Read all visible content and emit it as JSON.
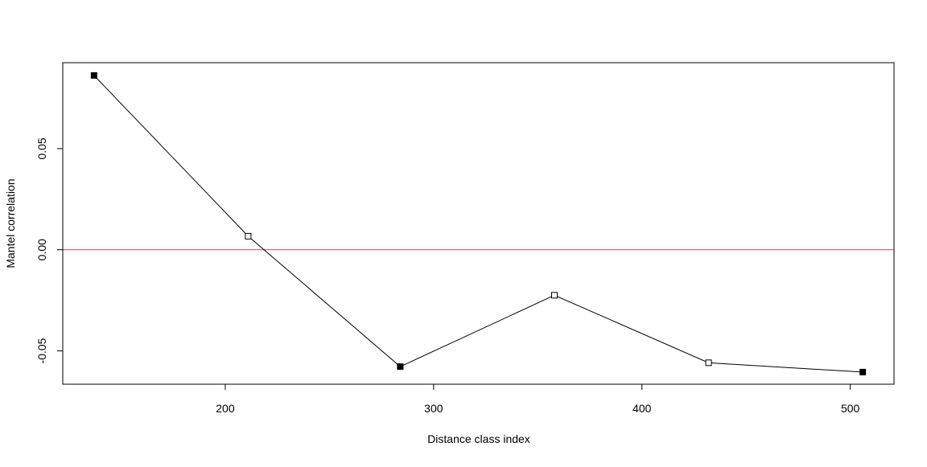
{
  "chart_data": {
    "type": "line",
    "title": "",
    "xlabel": "Distance class index",
    "ylabel": "Mantel correlation",
    "xlim": [
      122,
      521
    ],
    "ylim": [
      -0.0665,
      0.0925
    ],
    "xticks": [
      200,
      300,
      400,
      500
    ],
    "xtick_labels": [
      "200",
      "300",
      "400",
      "500"
    ],
    "yticks": [
      -0.05,
      0,
      0.05
    ],
    "ytick_labels": [
      "-0.05",
      "0.00",
      "0.05"
    ],
    "grid": false,
    "series": [
      {
        "x": [
          137,
          211,
          284,
          358,
          432,
          506
        ],
        "y": [
          0.0862,
          0.0067,
          -0.0578,
          -0.0225,
          -0.0559,
          -0.0605
        ],
        "significant": [
          true,
          false,
          true,
          false,
          false,
          true
        ],
        "color": "#000000"
      }
    ],
    "reference_line": {
      "y": 0,
      "color": "#DF536B"
    },
    "marker_fill_significant": "#000000",
    "marker_fill_nonsignificant": "#ffffff"
  }
}
